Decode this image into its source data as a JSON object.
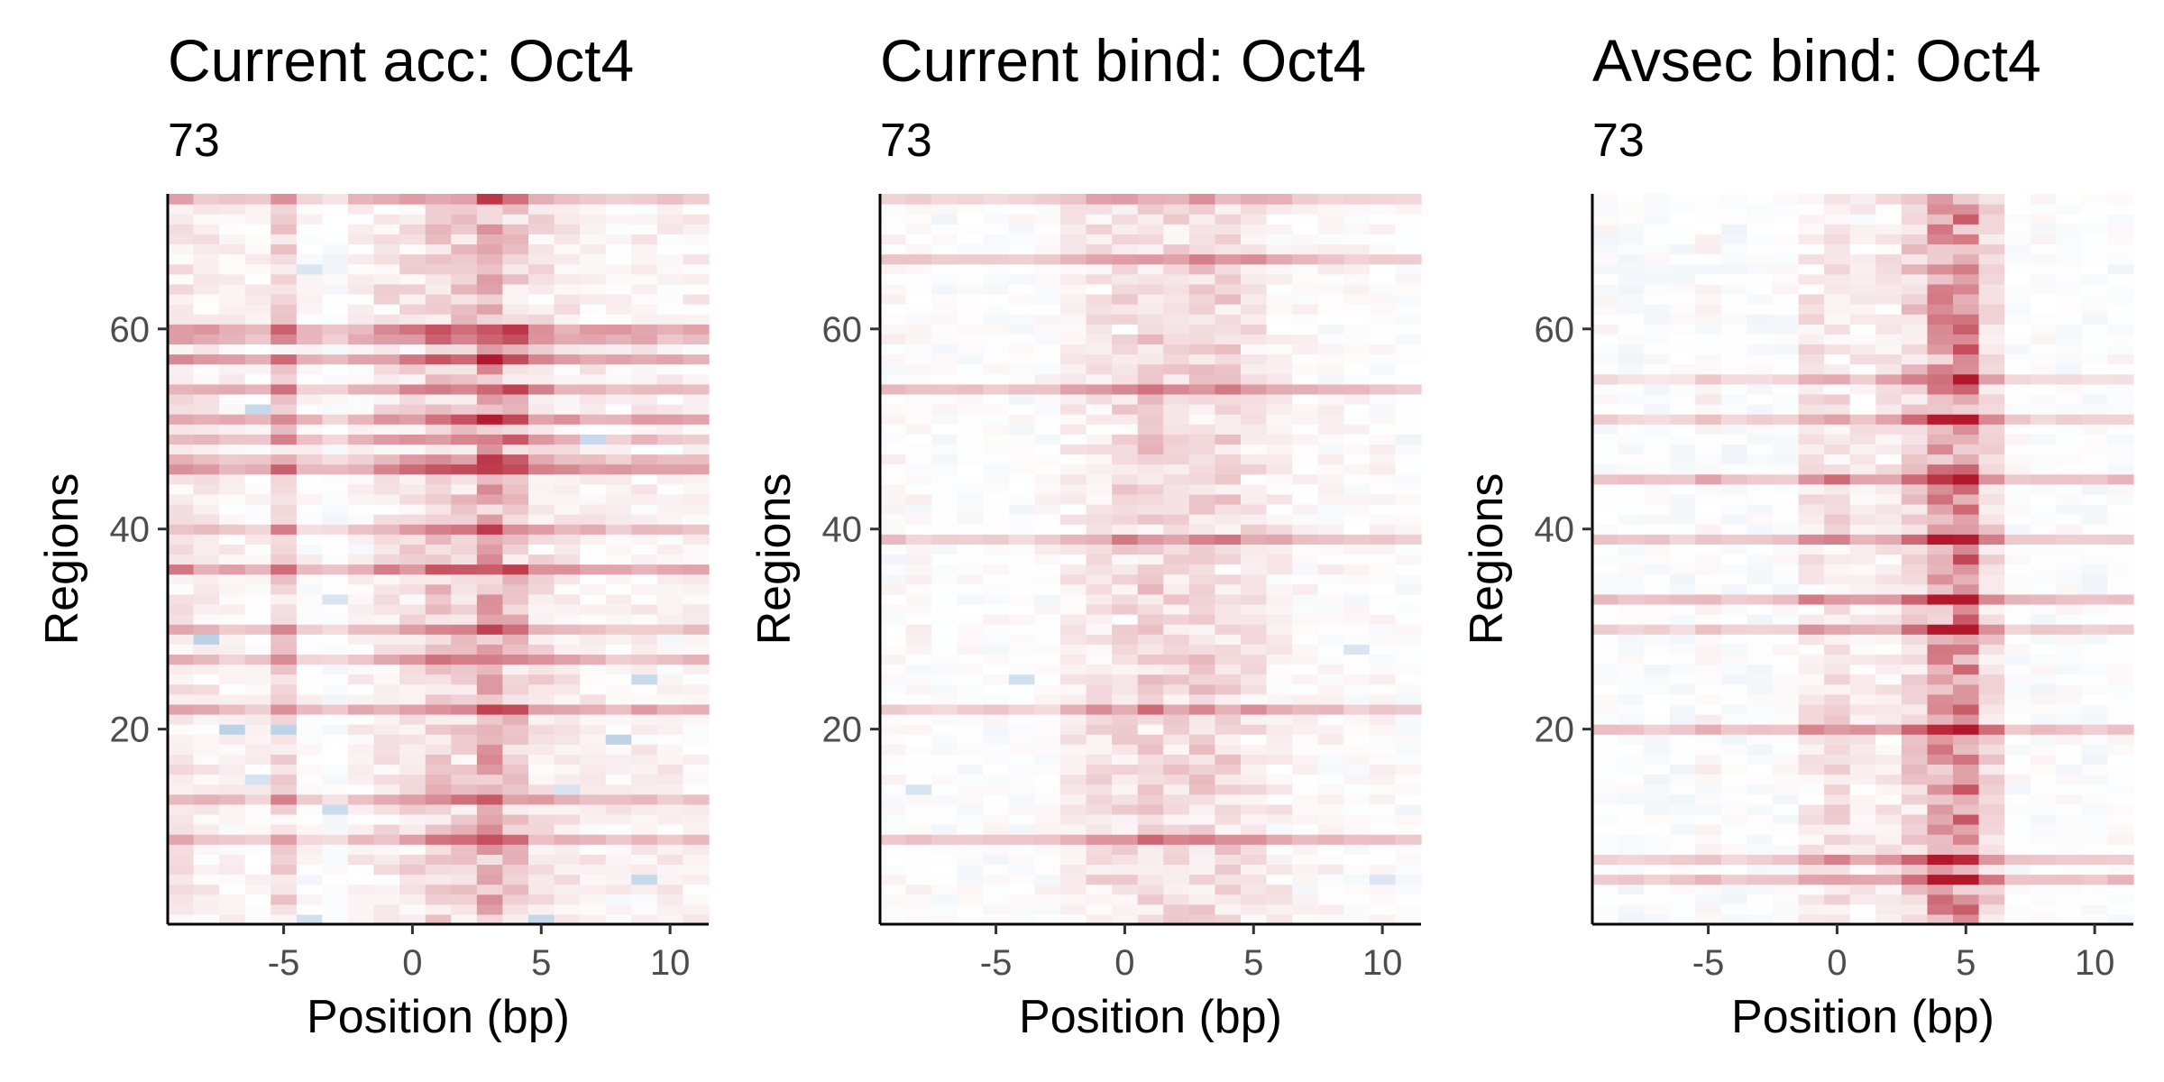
{
  "colors": {
    "high": "#B2182B",
    "mid": "#FFFFFF",
    "low": "#2166AC",
    "axis": "#000000",
    "tick_text": "#4D4D4D"
  },
  "chart_data": [
    {
      "type": "heatmap",
      "title": "Current acc: Oct4",
      "subtitle": "73",
      "xlabel": "Position (bp)",
      "ylabel": "Regions",
      "x_range": [
        -9.5,
        11.5
      ],
      "y_range": [
        0.5,
        73.5
      ],
      "x_ticks": [
        -5,
        0,
        5,
        10
      ],
      "y_ticks": [
        20,
        40,
        60
      ],
      "n_rows": 73,
      "x_positions": [
        -9,
        -8,
        -7,
        -6,
        -5,
        -4,
        -3,
        -2,
        -1,
        0,
        1,
        2,
        3,
        4,
        5,
        6,
        7,
        8,
        9,
        10,
        11
      ],
      "column_profile": [
        0.18,
        0.14,
        0.12,
        0.1,
        0.28,
        0.08,
        0.04,
        0.12,
        0.18,
        0.22,
        0.3,
        0.3,
        0.46,
        0.34,
        0.2,
        0.16,
        0.14,
        0.12,
        0.14,
        0.12,
        0.12
      ],
      "hot_rows": [
        9,
        13,
        22,
        27,
        30,
        36,
        40,
        46,
        47,
        49,
        51,
        54,
        57,
        59,
        60,
        73
      ],
      "cold_cells": [
        [
          5,
          1
        ],
        [
          -4,
          1
        ],
        [
          -6,
          15
        ],
        [
          -3,
          12
        ],
        [
          -7,
          20
        ],
        [
          -5,
          20
        ],
        [
          -8,
          29
        ],
        [
          -3,
          33
        ],
        [
          -6,
          52
        ],
        [
          -4,
          66
        ],
        [
          6,
          14
        ],
        [
          8,
          19
        ],
        [
          9,
          25
        ],
        [
          9,
          5
        ],
        [
          7,
          49
        ]
      ],
      "value_scale": "diverging",
      "grid": false,
      "legend": "none",
      "seed": 11
    },
    {
      "type": "heatmap",
      "title": "Current bind: Oct4",
      "subtitle": "73",
      "xlabel": "Position (bp)",
      "ylabel": "Regions",
      "x_range": [
        -9.5,
        11.5
      ],
      "y_range": [
        0.5,
        73.5
      ],
      "x_ticks": [
        -5,
        0,
        5,
        10
      ],
      "y_ticks": [
        20,
        40,
        60
      ],
      "n_rows": 73,
      "x_positions": [
        -9,
        -8,
        -7,
        -6,
        -5,
        -4,
        -3,
        -2,
        -1,
        0,
        1,
        2,
        3,
        4,
        5,
        6,
        7,
        8,
        9,
        10,
        11
      ],
      "column_profile": [
        0.08,
        0.08,
        0.06,
        0.06,
        0.06,
        0.06,
        0.08,
        0.14,
        0.2,
        0.24,
        0.28,
        0.24,
        0.28,
        0.26,
        0.2,
        0.14,
        0.1,
        0.1,
        0.08,
        0.08,
        0.06
      ],
      "hot_rows": [
        9,
        22,
        39,
        54,
        67,
        73
      ],
      "cold_cells": [
        [
          10,
          5
        ],
        [
          9,
          28
        ],
        [
          -8,
          14
        ],
        [
          -4,
          25
        ]
      ],
      "value_scale": "diverging",
      "grid": false,
      "legend": "none",
      "seed": 23
    },
    {
      "type": "heatmap",
      "title": "Avsec bind: Oct4",
      "subtitle": "73",
      "xlabel": "Position (bp)",
      "ylabel": "Regions",
      "x_range": [
        -9.5,
        11.5
      ],
      "y_range": [
        0.5,
        73.5
      ],
      "x_ticks": [
        -5,
        0,
        5,
        10
      ],
      "y_ticks": [
        20,
        40,
        60
      ],
      "n_rows": 73,
      "x_positions": [
        -9,
        -8,
        -7,
        -6,
        -5,
        -4,
        -3,
        -2,
        -1,
        0,
        1,
        2,
        3,
        4,
        5,
        6,
        7,
        8,
        9,
        10,
        11
      ],
      "column_profile": [
        0.06,
        0.04,
        0.04,
        0.04,
        0.1,
        0.04,
        0.04,
        0.06,
        0.18,
        0.22,
        0.14,
        0.16,
        0.3,
        0.55,
        0.7,
        0.24,
        0.06,
        0.06,
        0.06,
        0.04,
        0.06
      ],
      "hot_rows": [
        5,
        7,
        20,
        30,
        33,
        39,
        45,
        51,
        55
      ],
      "cold_cells": [],
      "value_scale": "diverging",
      "grid": false,
      "legend": "none",
      "seed": 37
    }
  ]
}
